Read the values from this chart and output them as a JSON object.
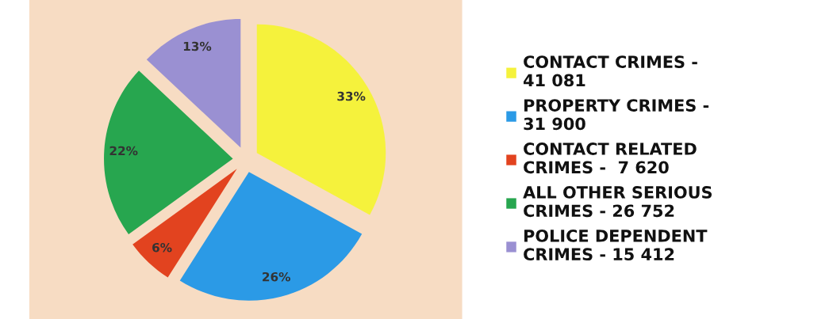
{
  "chart_data": {
    "type": "pie",
    "categories": [
      "CONTACT CRIMES -\n41 081",
      "PROPERTY CRIMES -\n31 900",
      "CONTACT RELATED\nCRIMES -  7 620",
      "ALL OTHER SERIOUS\nCRIMES - 26 752",
      "POLICE DEPENDENT\nCRIMES - 15 412"
    ],
    "values": [
      33,
      26,
      6,
      22,
      13
    ],
    "colors": [
      "#f5f23c",
      "#2b9ae6",
      "#e2431f",
      "#27a64f",
      "#9a90d2"
    ],
    "value_labels": [
      "33%",
      "26%",
      "6%",
      "22%",
      "13%"
    ],
    "legend": "right"
  }
}
